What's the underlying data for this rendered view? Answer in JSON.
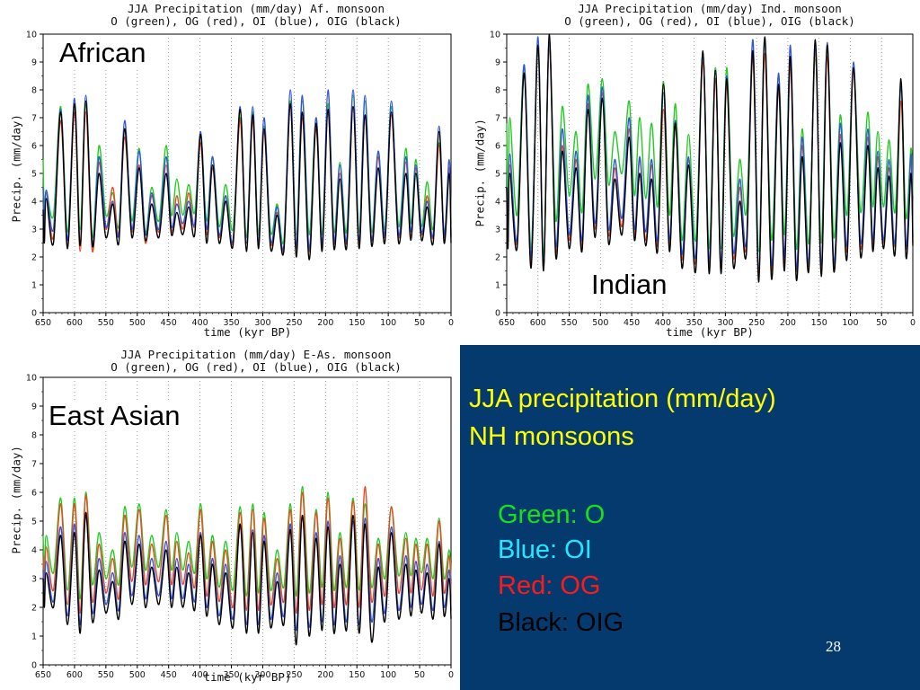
{
  "slide": {
    "heading_line1": "JJA precipitation (mm/day)",
    "heading_line2": "NH monsoons",
    "legend": [
      {
        "text": "Green: O",
        "color": "#18e018"
      },
      {
        "text": "Blue: OI",
        "color": "#22e8ff"
      },
      {
        "text": "Red: OG",
        "color": "#ff1a1a"
      },
      {
        "text": "Black: OIG",
        "color": "#000000"
      }
    ],
    "page_number": "28",
    "heading_color": "#ffff00",
    "background": "#053a6e"
  },
  "chart_data": [
    {
      "type": "line",
      "title_line1": "JJA Precipitation (mm/day) Af. monsoon",
      "title_line2": "O (green), OG (red), OI (blue), OIG (black)",
      "region_label": "African",
      "xlabel": "time (kyr BP)",
      "ylabel": "Precip. (mm/day)",
      "xlim": [
        650,
        0
      ],
      "ylim": [
        0,
        10
      ],
      "xticks": [
        "650",
        "600",
        "550",
        "500",
        "450",
        "400",
        "350",
        "300",
        "250",
        "200",
        "150",
        "100",
        "50",
        "0"
      ],
      "yticks": [
        "0",
        "1",
        "2",
        "3",
        "4",
        "5",
        "6",
        "7",
        "8",
        "9",
        "10"
      ],
      "grid": "vertical dotted",
      "peak_times": [
        645,
        622,
        600,
        582,
        561,
        539,
        520,
        497,
        477,
        454,
        437,
        418,
        399,
        380,
        359,
        336,
        316,
        298,
        277,
        256,
        237,
        215,
        196,
        177,
        156,
        137,
        116,
        95,
        72,
        56,
        38,
        19,
        3
      ],
      "series": [
        {
          "name": "O",
          "color": "#22cc22",
          "peaks": [
            4.4,
            7.4,
            7.5,
            7.5,
            6.0,
            4.3,
            6.6,
            5.9,
            4.5,
            6.0,
            4.8,
            4.6,
            6.4,
            5.6,
            4.6,
            7.0,
            7.2,
            6.7,
            3.9,
            7.6,
            7.6,
            7.0,
            7.5,
            5.4,
            7.8,
            7.6,
            5.8,
            7.4,
            5.9,
            5.5,
            4.7,
            6.1,
            5.2
          ],
          "troughs": [
            3.5,
            2.9,
            3.0,
            2.7,
            3.5,
            3.1,
            3.3,
            2.9,
            3.3,
            3.5,
            3.5,
            3.6,
            3.3,
            3.1,
            3.0,
            2.7,
            2.8,
            2.9,
            2.6,
            2.8,
            2.8,
            2.8,
            2.9,
            2.9,
            2.9,
            2.9,
            3.0,
            3.1,
            3.2,
            3.1,
            3.0,
            2.8,
            3.2
          ],
          "start": 5.5
        },
        {
          "name": "OG",
          "color": "#e84a22",
          "peaks": [
            4.3,
            6.9,
            7.2,
            7.2,
            5.4,
            4.5,
            6.3,
            5.3,
            4.2,
            5.3,
            4.2,
            4.3,
            6.1,
            5.2,
            4.2,
            6.9,
            6.9,
            6.5,
            3.6,
            7.4,
            7.0,
            6.6,
            7.3,
            5.0,
            7.4,
            7.1,
            5.6,
            7.1,
            5.4,
            5.2,
            4.2,
            6.0,
            5.2
          ],
          "troughs": [
            2.7,
            2.4,
            2.2,
            2.2,
            3.0,
            2.8,
            2.9,
            2.5,
            2.9,
            2.9,
            3.0,
            3.1,
            2.8,
            2.7,
            2.5,
            2.3,
            2.4,
            2.5,
            2.3,
            2.3,
            2.2,
            2.4,
            2.5,
            2.5,
            2.5,
            2.6,
            2.7,
            2.7,
            2.7,
            2.8,
            2.7,
            2.7,
            2.7
          ],
          "start": 4.0
        },
        {
          "name": "OI",
          "color": "#3355dd",
          "peaks": [
            4.4,
            7.3,
            7.7,
            7.8,
            5.6,
            4.0,
            6.9,
            5.8,
            4.3,
            5.6,
            3.9,
            4.0,
            6.5,
            5.6,
            4.2,
            7.4,
            7.4,
            7.0,
            3.8,
            8.0,
            7.8,
            7.0,
            8.0,
            5.3,
            8.0,
            7.8,
            5.8,
            7.6,
            5.6,
            5.3,
            4.0,
            6.7,
            5.5
          ],
          "troughs": [
            3.0,
            2.6,
            2.5,
            2.5,
            3.1,
            2.8,
            3.0,
            2.8,
            3.0,
            3.1,
            3.2,
            3.2,
            3.0,
            2.8,
            2.6,
            2.5,
            2.5,
            2.6,
            2.4,
            2.4,
            2.3,
            2.5,
            2.6,
            2.6,
            2.6,
            2.6,
            2.8,
            2.8,
            2.9,
            2.9,
            2.8,
            2.8,
            2.8
          ],
          "start": 4.5
        },
        {
          "name": "OIG",
          "color": "#000000",
          "peaks": [
            4.1,
            7.2,
            7.5,
            7.6,
            5.0,
            3.9,
            6.6,
            5.2,
            3.9,
            5.0,
            3.6,
            3.8,
            6.4,
            5.3,
            4.0,
            7.3,
            7.1,
            6.6,
            3.5,
            7.5,
            7.2,
            6.8,
            7.3,
            4.8,
            7.4,
            7.1,
            5.2,
            7.2,
            5.0,
            5.0,
            3.8,
            6.5,
            5.0
          ],
          "troughs": [
            2.5,
            2.3,
            2.4,
            2.4,
            2.7,
            2.5,
            2.7,
            2.6,
            2.7,
            2.8,
            2.8,
            2.8,
            2.5,
            2.5,
            2.4,
            2.2,
            2.3,
            2.3,
            2.2,
            2.0,
            1.9,
            2.2,
            2.3,
            2.3,
            2.3,
            2.4,
            2.5,
            2.5,
            2.6,
            2.6,
            2.5,
            2.5,
            2.5
          ],
          "start": 3.7
        }
      ]
    },
    {
      "type": "line",
      "title_line1": "JJA Precipitation (mm/day) Ind. monsoon",
      "title_line2": "O (green), OG (red), OI (blue), OIG (black)",
      "region_label": "Indian",
      "xlabel": "time (kyr BP)",
      "ylabel": "Precip. (mm/day)",
      "xlim": [
        650,
        0
      ],
      "ylim": [
        0,
        10
      ],
      "xticks": [
        "650",
        "600",
        "550",
        "500",
        "450",
        "400",
        "350",
        "300",
        "250",
        "200",
        "150",
        "100",
        "50",
        "0"
      ],
      "yticks": [
        "0",
        "1",
        "2",
        "3",
        "4",
        "5",
        "6",
        "7",
        "8",
        "9",
        "10"
      ],
      "grid": "vertical dotted",
      "peak_times": [
        645,
        622,
        600,
        582,
        561,
        539,
        520,
        497,
        477,
        454,
        437,
        418,
        399,
        380,
        359,
        336,
        316,
        298,
        277,
        256,
        237,
        215,
        196,
        177,
        156,
        137,
        116,
        95,
        72,
        56,
        38,
        19,
        3
      ],
      "series": [
        {
          "name": "O",
          "color": "#22cc22",
          "peaks": [
            7.0,
            8.9,
            9.5,
            9.8,
            7.4,
            6.5,
            8.2,
            8.4,
            6.5,
            7.6,
            7.0,
            6.8,
            8.3,
            7.5,
            6.4,
            9.3,
            8.8,
            8.8,
            5.5,
            9.3,
            9.3,
            8.5,
            9.2,
            6.6,
            9.1,
            9.5,
            7.1,
            8.8,
            7.2,
            6.5,
            6.2,
            8.1,
            5.9
          ],
          "troughs": [
            3.5,
            2.3,
            2.0,
            3.3,
            4.2,
            3.6,
            4.8,
            4.6,
            5.0,
            4.2,
            4.1,
            3.8,
            3.5,
            2.6,
            2.6,
            2.3,
            2.3,
            2.8,
            3.6,
            2.2,
            2.6,
            2.8,
            2.3,
            2.5,
            2.5,
            2.7,
            3.5,
            3.6,
            3.8,
            3.8,
            3.6,
            3.4,
            4.2
          ],
          "start": 6.8
        },
        {
          "name": "OG",
          "color": "#e84a22",
          "peaks": [
            5.3,
            8.6,
            9.6,
            9.6,
            6.0,
            5.5,
            7.5,
            7.9,
            5.2,
            6.6,
            5.5,
            5.3,
            7.3,
            6.7,
            5.5,
            9.0,
            8.4,
            8.2,
            4.5,
            9.2,
            9.3,
            8.0,
            8.9,
            6.0,
            9.4,
            9.2,
            6.4,
            8.7,
            6.3,
            5.6,
            5.2,
            7.6,
            5.5
          ],
          "troughs": [
            2.5,
            1.8,
            1.6,
            2.2,
            2.6,
            2.4,
            3.0,
            2.8,
            3.1,
            2.8,
            2.6,
            2.4,
            2.4,
            1.9,
            1.8,
            1.7,
            1.6,
            2.0,
            2.3,
            1.4,
            1.5,
            1.8,
            1.5,
            1.7,
            1.5,
            1.6,
            2.2,
            2.3,
            2.4,
            2.5,
            2.4,
            2.3,
            2.5
          ],
          "start": 4.0
        },
        {
          "name": "OI",
          "color": "#3355dd",
          "peaks": [
            5.7,
            8.9,
            9.9,
            9.8,
            6.6,
            5.8,
            7.8,
            8.1,
            5.5,
            7.0,
            5.6,
            5.5,
            7.9,
            6.9,
            5.6,
            9.3,
            8.6,
            8.5,
            4.8,
            9.8,
            9.8,
            8.6,
            9.6,
            6.3,
            9.6,
            9.7,
            6.8,
            9.0,
            6.6,
            5.8,
            5.5,
            8.2,
            5.7
          ],
          "troughs": [
            2.6,
            2.0,
            1.7,
            2.4,
            2.8,
            2.6,
            3.2,
            3.0,
            3.4,
            3.0,
            2.9,
            2.6,
            2.6,
            2.1,
            2.0,
            1.8,
            1.8,
            2.2,
            2.5,
            1.6,
            1.7,
            2.0,
            1.6,
            1.8,
            1.7,
            1.8,
            2.4,
            2.5,
            2.6,
            2.6,
            2.5,
            2.4,
            2.7
          ],
          "start": 4.5
        },
        {
          "name": "OIG",
          "color": "#000000",
          "peaks": [
            5.0,
            8.6,
            9.6,
            10.0,
            5.8,
            5.2,
            7.3,
            7.7,
            4.8,
            6.3,
            5.0,
            4.8,
            8.2,
            6.8,
            5.3,
            9.4,
            8.7,
            8.4,
            4.0,
            9.4,
            9.9,
            8.2,
            9.2,
            5.6,
            9.8,
            9.6,
            6.1,
            8.8,
            6.0,
            5.2,
            4.9,
            8.4,
            5.0
          ],
          "troughs": [
            2.3,
            1.6,
            1.5,
            2.0,
            2.3,
            2.2,
            2.7,
            2.5,
            2.8,
            2.6,
            2.4,
            2.2,
            2.2,
            1.6,
            1.5,
            1.4,
            1.4,
            1.7,
            2.1,
            1.1,
            1.2,
            1.5,
            1.2,
            1.5,
            1.3,
            1.5,
            1.9,
            2.0,
            2.2,
            2.3,
            2.1,
            2.0,
            2.4
          ],
          "start": 4.5
        }
      ]
    },
    {
      "type": "line",
      "title_line1": "JJA Precipitation (mm/day) E-As. monsoon",
      "title_line2": "O (green), OG (red), OI (blue), OIG (black)",
      "region_label": "East Asian",
      "xlabel": "time (kyr BP)",
      "ylabel": "Precip. (mm/day)",
      "xlim": [
        650,
        0
      ],
      "ylim": [
        0,
        10
      ],
      "xticks": [
        "650",
        "600",
        "550",
        "500",
        "450",
        "400",
        "350",
        "300",
        "250",
        "200",
        "150",
        "100",
        "50",
        "0"
      ],
      "yticks": [
        "0",
        "1",
        "2",
        "3",
        "4",
        "5",
        "6",
        "7",
        "8",
        "9",
        "10"
      ],
      "grid": "vertical dotted",
      "peak_times": [
        645,
        622,
        600,
        582,
        561,
        539,
        520,
        497,
        477,
        454,
        437,
        418,
        399,
        380,
        359,
        336,
        316,
        298,
        277,
        256,
        237,
        215,
        196,
        177,
        156,
        137,
        116,
        95,
        72,
        56,
        38,
        19,
        3
      ],
      "series": [
        {
          "name": "O",
          "color": "#22cc22",
          "peaks": [
            4.5,
            5.8,
            5.8,
            6.0,
            4.6,
            4.0,
            5.5,
            5.6,
            4.5,
            5.4,
            4.6,
            4.3,
            5.6,
            4.5,
            4.3,
            5.5,
            5.6,
            5.3,
            4.0,
            5.6,
            6.2,
            5.4,
            6.0,
            4.6,
            5.8,
            5.6,
            4.4,
            5.5,
            4.6,
            4.4,
            4.4,
            5.1,
            4.0
          ],
          "troughs": [
            3.2,
            2.6,
            2.3,
            2.8,
            3.0,
            2.8,
            3.4,
            3.3,
            3.4,
            3.3,
            3.3,
            3.2,
            3.0,
            2.7,
            2.6,
            2.4,
            2.5,
            2.6,
            2.7,
            2.4,
            2.5,
            2.7,
            2.6,
            2.7,
            2.6,
            2.7,
            3.0,
            3.1,
            3.1,
            3.2,
            3.0,
            3.0,
            3.0
          ],
          "start": 4.5
        },
        {
          "name": "OG",
          "color": "#e84a22",
          "peaks": [
            4.1,
            5.6,
            5.6,
            5.9,
            4.2,
            3.7,
            5.2,
            5.4,
            4.2,
            5.2,
            4.3,
            3.9,
            5.4,
            4.3,
            4.0,
            5.3,
            5.4,
            5.1,
            3.7,
            5.4,
            6.0,
            5.3,
            5.8,
            4.4,
            5.7,
            6.2,
            4.2,
            5.5,
            4.4,
            4.2,
            4.2,
            5.0,
            3.8
          ],
          "troughs": [
            2.6,
            2.1,
            1.8,
            2.2,
            2.5,
            2.3,
            2.9,
            2.8,
            2.9,
            2.8,
            2.8,
            2.7,
            2.4,
            2.2,
            2.0,
            1.9,
            1.9,
            2.1,
            2.2,
            1.8,
            1.9,
            2.1,
            2.0,
            2.1,
            2.0,
            2.2,
            2.4,
            2.5,
            2.5,
            2.6,
            2.4,
            2.5,
            2.4
          ],
          "start": 3.8
        },
        {
          "name": "OI",
          "color": "#3355dd",
          "peaks": [
            3.6,
            4.8,
            4.9,
            5.2,
            3.7,
            3.2,
            4.6,
            4.5,
            3.7,
            4.3,
            3.7,
            3.5,
            4.6,
            3.7,
            3.5,
            4.8,
            4.7,
            4.5,
            3.2,
            4.9,
            5.2,
            4.6,
            5.0,
            3.8,
            5.0,
            5.1,
            3.7,
            4.8,
            3.8,
            3.6,
            3.5,
            4.3,
            3.3
          ],
          "troughs": [
            2.2,
            1.7,
            1.4,
            1.8,
            2.1,
            1.9,
            2.4,
            2.3,
            2.4,
            2.3,
            2.3,
            2.2,
            2.0,
            1.7,
            1.6,
            1.4,
            1.4,
            1.6,
            1.7,
            1.2,
            1.3,
            1.5,
            1.4,
            1.5,
            1.4,
            1.5,
            1.8,
            1.9,
            2.0,
            2.1,
            1.9,
            2.0,
            1.9
          ],
          "start": 3.3
        },
        {
          "name": "OIG",
          "color": "#000000",
          "peaks": [
            3.2,
            4.5,
            4.6,
            5.3,
            3.3,
            2.9,
            4.3,
            4.2,
            3.4,
            4.0,
            3.4,
            3.2,
            4.5,
            3.5,
            3.2,
            4.9,
            4.6,
            4.3,
            2.9,
            4.7,
            5.2,
            4.4,
            4.8,
            3.5,
            5.2,
            4.9,
            3.4,
            4.6,
            3.5,
            3.3,
            3.2,
            4.2,
            3.0
          ],
          "troughs": [
            2.0,
            1.4,
            1.1,
            1.5,
            1.8,
            1.6,
            2.1,
            2.0,
            2.1,
            2.0,
            2.0,
            1.9,
            1.7,
            1.4,
            1.3,
            1.1,
            1.1,
            1.3,
            1.4,
            0.7,
            1.0,
            1.2,
            1.1,
            1.2,
            1.1,
            0.8,
            1.5,
            1.6,
            1.7,
            1.8,
            1.6,
            1.7,
            1.6
          ],
          "start": 3.0
        }
      ]
    }
  ]
}
